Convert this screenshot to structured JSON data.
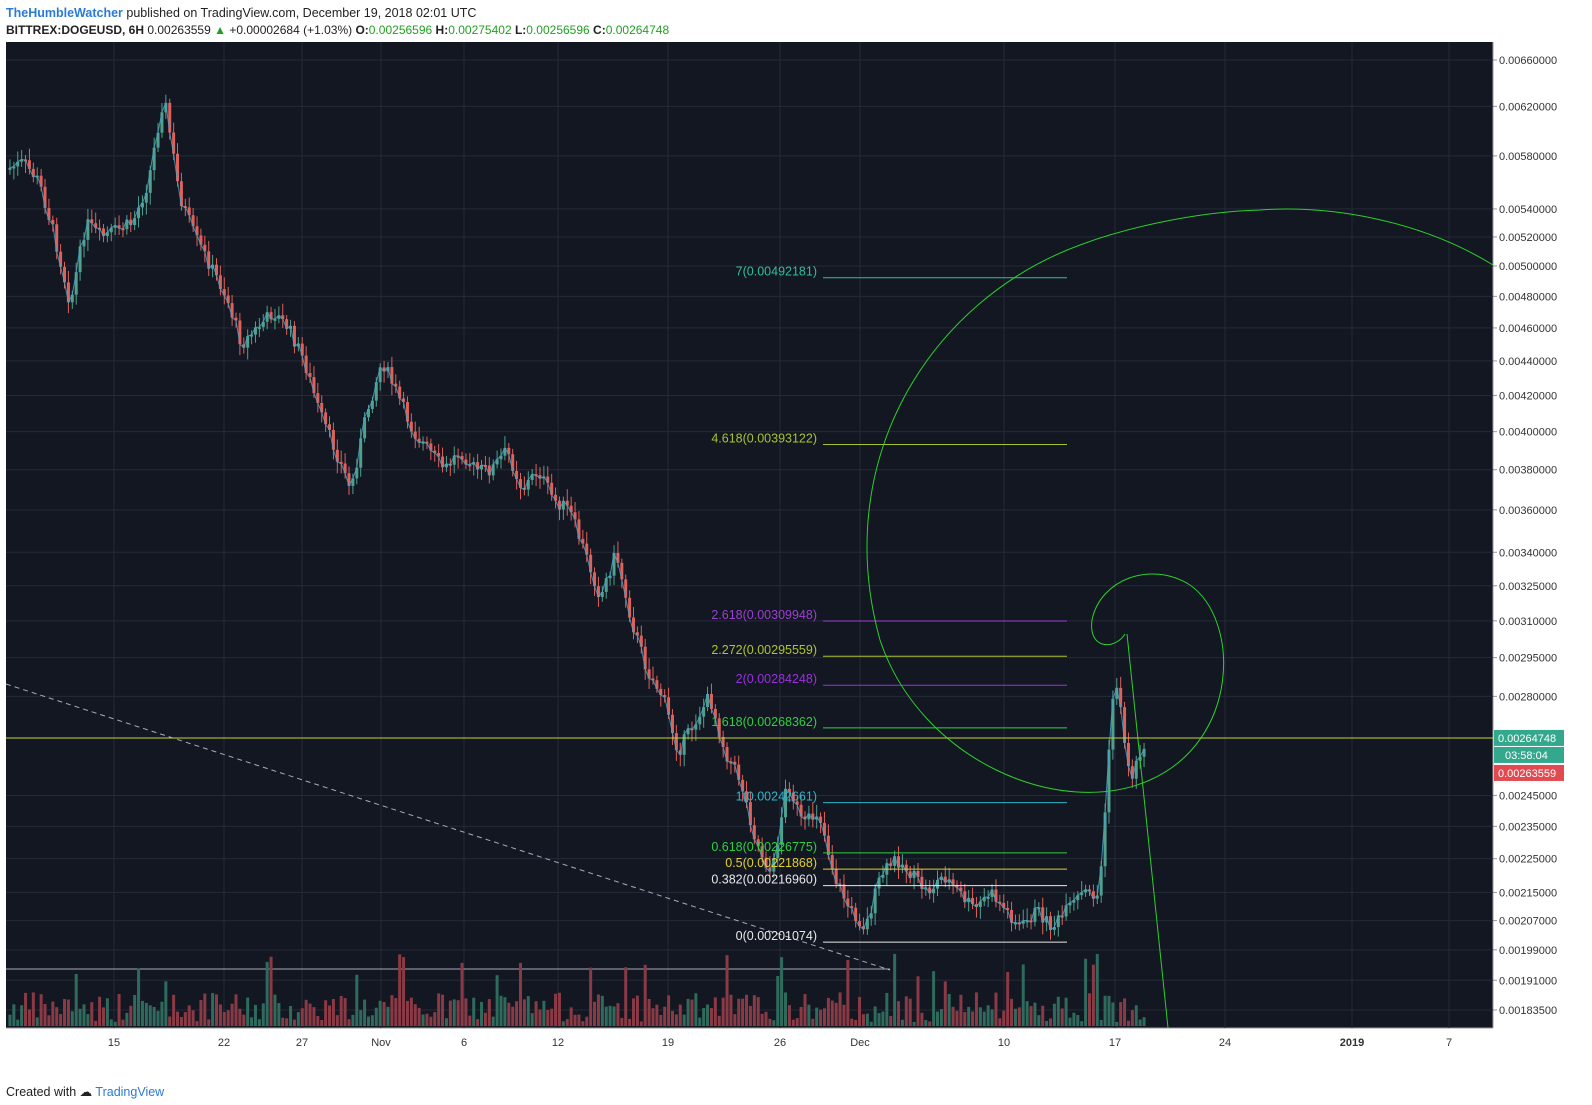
{
  "header": {
    "author": "TheHumbleWatcher",
    "published": "published on TradingView.com, December 19, 2018 02:01 UTC",
    "symbol": "BITTREX:DOGEUSD, 6H",
    "price": "0.00263559",
    "change": "+0.00002684 (+1.03%)",
    "o_label": "O:",
    "o_val": "0.00256596",
    "h_label": "H:",
    "h_val": "0.00275402",
    "l_label": "L:",
    "l_val": "0.00256596",
    "c_label": "C:",
    "c_val": "0.00264748"
  },
  "footer": {
    "created": "Created with",
    "brand": "TradingView"
  },
  "colors": {
    "background": "#131722",
    "grid": "#242a38",
    "up": "#4fa08c",
    "down": "#e0605a",
    "line": "#4aa3c8",
    "spiral": "#2bd02b",
    "hline": "#c2d430",
    "axis_text": "#333333"
  },
  "chart_data": {
    "type": "candlestick",
    "timeframe": "6H",
    "y_axis_labels": [
      "0.00660000",
      "0.00620000",
      "0.00580000",
      "0.00540000",
      "0.00520000",
      "0.00500000",
      "0.00480000",
      "0.00460000",
      "0.00440000",
      "0.00420000",
      "0.00400000",
      "0.00380000",
      "0.00360000",
      "0.00340000",
      "0.00325000",
      "0.00310000",
      "0.00295000",
      "0.00280000",
      "0.00245000",
      "0.00235000",
      "0.00225000",
      "0.00215000",
      "0.00207000",
      "0.00199000",
      "0.00191000",
      "0.00183500"
    ],
    "x_axis_labels": [
      "15",
      "22",
      "27",
      "Nov",
      "6",
      "12",
      "19",
      "26",
      "Dec",
      "10",
      "17",
      "24",
      "2019",
      "7"
    ],
    "y_scale": "log",
    "last_price": "0.00264748",
    "countdown": "03:58:04",
    "bid_price": "0.00263559",
    "fib_levels": [
      {
        "label": "7(0.00492181)",
        "value": 0.00492181,
        "color": "#2fbf9a"
      },
      {
        "label": "4.618(0.00393122)",
        "value": 0.00393122,
        "color": "#a3c431"
      },
      {
        "label": "2.618(0.00309948)",
        "value": 0.00309948,
        "color": "#9b3fd0"
      },
      {
        "label": "2.272(0.00295559)",
        "value": 0.00295559,
        "color": "#b0c42d"
      },
      {
        "label": "2(0.00284248)",
        "value": 0.00284248,
        "color": "#9b2fe0"
      },
      {
        "label": "1.618(0.00268362)",
        "value": 0.00268362,
        "color": "#2fd040"
      },
      {
        "label": "1(0.00242661)",
        "value": 0.00242661,
        "color": "#2fb5c8"
      },
      {
        "label": "0.618(0.00226775)",
        "value": 0.00226775,
        "color": "#2fd040"
      },
      {
        "label": "0.5(0.00221868)",
        "value": 0.00221868,
        "color": "#e0d030"
      },
      {
        "label": "0.382(0.00216960)",
        "value": 0.0021696,
        "color": "#e8e8e8"
      },
      {
        "label": "0(0.00201074)",
        "value": 0.00201074,
        "color": "#e8e8e8"
      }
    ],
    "price_path": [
      [
        0,
        0.0057
      ],
      [
        1,
        0.00575
      ],
      [
        2,
        0.0056
      ],
      [
        3,
        0.0052
      ],
      [
        4,
        0.00475
      ],
      [
        5,
        0.0053
      ],
      [
        6,
        0.0052
      ],
      [
        7,
        0.00525
      ],
      [
        8,
        0.0053
      ],
      [
        9,
        0.0056
      ],
      [
        10,
        0.0063
      ],
      [
        11,
        0.0055
      ],
      [
        12,
        0.0052
      ],
      [
        13,
        0.005
      ],
      [
        14,
        0.0048
      ],
      [
        15,
        0.0045
      ],
      [
        16,
        0.0046
      ],
      [
        17,
        0.0047
      ],
      [
        18,
        0.0046
      ],
      [
        19,
        0.0044
      ],
      [
        20,
        0.0041
      ],
      [
        21,
        0.0039
      ],
      [
        22,
        0.0037
      ],
      [
        23,
        0.0041
      ],
      [
        24,
        0.0044
      ],
      [
        25,
        0.0042
      ],
      [
        26,
        0.004
      ],
      [
        27,
        0.0039
      ],
      [
        28,
        0.0038
      ],
      [
        29,
        0.0039
      ],
      [
        30,
        0.0038
      ],
      [
        31,
        0.0038
      ],
      [
        32,
        0.0039
      ],
      [
        33,
        0.0037
      ],
      [
        34,
        0.0038
      ],
      [
        35,
        0.00365
      ],
      [
        36,
        0.0036
      ],
      [
        37,
        0.0034
      ],
      [
        38,
        0.0032
      ],
      [
        39,
        0.0034
      ],
      [
        40,
        0.0031
      ],
      [
        41,
        0.0029
      ],
      [
        42,
        0.0028
      ],
      [
        43,
        0.0026
      ],
      [
        44,
        0.0027
      ],
      [
        45,
        0.0028
      ],
      [
        46,
        0.0026
      ],
      [
        47,
        0.0025
      ],
      [
        48,
        0.0023
      ],
      [
        49,
        0.0022
      ],
      [
        50,
        0.0025
      ],
      [
        51,
        0.00235
      ],
      [
        52,
        0.0024
      ],
      [
        53,
        0.0022
      ],
      [
        54,
        0.0021
      ],
      [
        55,
        0.00205
      ],
      [
        56,
        0.0022
      ],
      [
        57,
        0.00225
      ],
      [
        58,
        0.0022
      ],
      [
        59,
        0.00215
      ],
      [
        60,
        0.0022
      ],
      [
        61,
        0.00215
      ],
      [
        62,
        0.0021
      ],
      [
        63,
        0.00215
      ],
      [
        64,
        0.0021
      ],
      [
        65,
        0.00205
      ],
      [
        66,
        0.0021
      ],
      [
        67,
        0.00205
      ],
      [
        68,
        0.0021
      ],
      [
        69,
        0.00215
      ],
      [
        70,
        0.00214
      ],
      [
        71,
        0.0029
      ],
      [
        72,
        0.0025
      ],
      [
        73,
        0.00265
      ]
    ]
  }
}
